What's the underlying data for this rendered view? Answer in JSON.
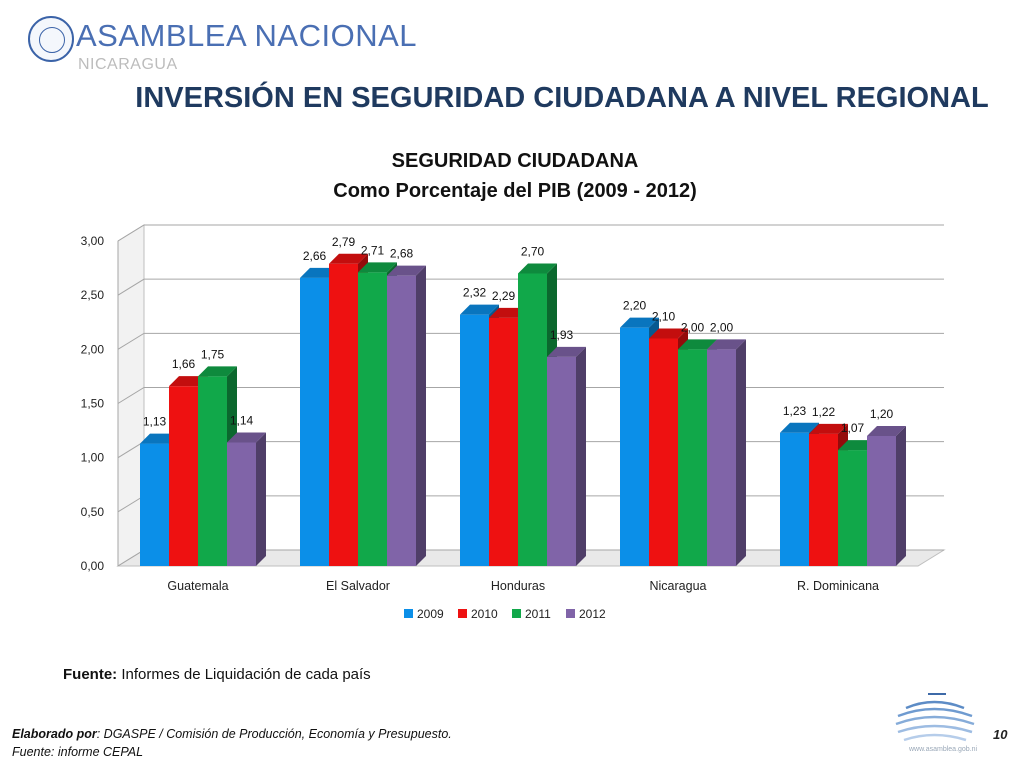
{
  "header": {
    "org_name": "ASAMBLEA NACIONAL",
    "org_country": "NICARAGUA",
    "page_title": "INVERSIÓN EN SEGURIDAD CIUDADANA A NIVEL REGIONAL"
  },
  "chart_data": {
    "type": "bar",
    "title": "SEGURIDAD CIUDADANA",
    "subtitle": "Como Porcentaje del PIB (2009 - 2012)",
    "categories": [
      "Guatemala",
      "El Salvador",
      "Honduras",
      "Nicaragua",
      "R. Dominicana"
    ],
    "series": [
      {
        "name": "2009",
        "color": "#0b8fe8",
        "values": [
          1.13,
          2.66,
          2.32,
          2.2,
          1.23
        ],
        "labels": [
          "1,13",
          "2,66",
          "2,32",
          "2,20",
          "1,23"
        ]
      },
      {
        "name": "2010",
        "color": "#ee1111",
        "values": [
          1.66,
          2.79,
          2.29,
          2.1,
          1.22
        ],
        "labels": [
          "1,66",
          "2,79",
          "2,29",
          "2,10",
          "1,22"
        ]
      },
      {
        "name": "2011",
        "color": "#11a84a",
        "values": [
          1.75,
          2.71,
          2.7,
          2.0,
          1.07
        ],
        "labels": [
          "1,75",
          "2,71",
          "2,70",
          "2,00",
          "1,07"
        ]
      },
      {
        "name": "2012",
        "color": "#8064a8",
        "values": [
          1.14,
          2.68,
          1.93,
          2.0,
          1.2
        ],
        "labels": [
          "1,14",
          "2,68",
          "1,93",
          "2,00",
          "1,20"
        ]
      }
    ],
    "ylim": [
      0,
      3
    ],
    "yticks": [
      "0,00",
      "0,50",
      "1,00",
      "1,50",
      "2,00",
      "2,50",
      "3,00"
    ],
    "grid": true,
    "legend_position": "bottom",
    "style": "3d-clustered-bar"
  },
  "source": {
    "label": "Fuente:",
    "text": " Informes de Liquidación de cada país"
  },
  "footer": {
    "prepared_label": "Elaborado por",
    "prepared_text": ": DGASPE / Comisión de Producción, Economía y Presupuesto.",
    "source_text": "Fuente: informe CEPAL",
    "page_number": "10",
    "url": "www.asamblea.gob.ni"
  }
}
